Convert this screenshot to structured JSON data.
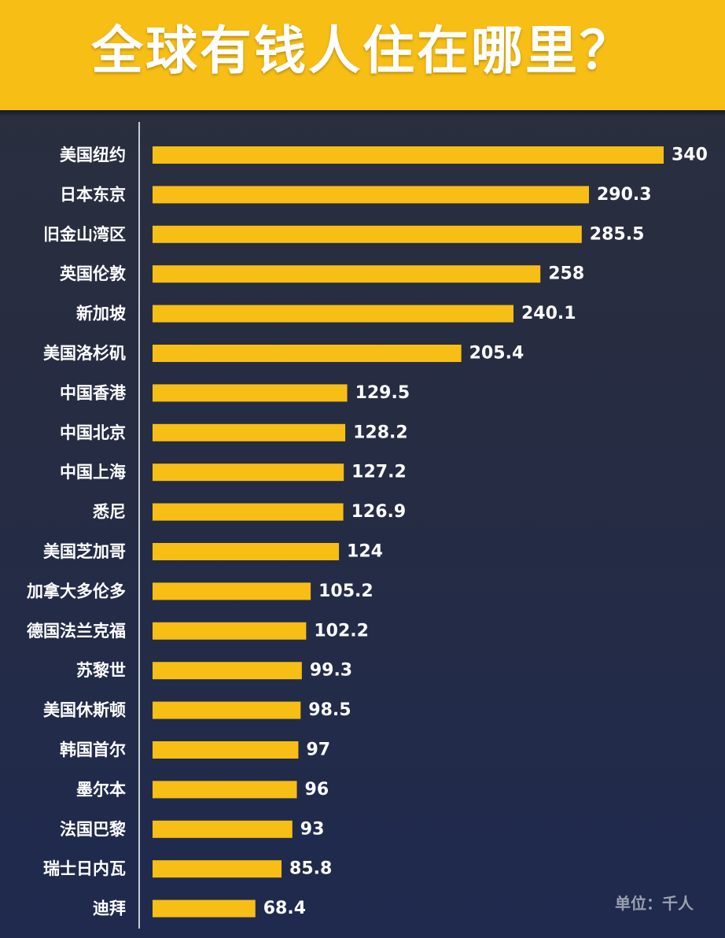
{
  "header": {
    "title": "全球有钱人住在哪里？"
  },
  "footer": {
    "unit": "单位：千人"
  },
  "chart_data": {
    "type": "bar",
    "orientation": "horizontal",
    "title": "全球有钱人住在哪里？",
    "unit": "千人",
    "categories": [
      "美国纽约",
      "日本东京",
      "旧金山湾区",
      "英国伦敦",
      "新加坡",
      "美国洛杉矶",
      "中国香港",
      "中国北京",
      "中国上海",
      "悉尼",
      "美国芝加哥",
      "加拿大多伦多",
      "德国法兰克福",
      "苏黎世",
      "美国休斯顿",
      "韩国首尔",
      "墨尔本",
      "法国巴黎",
      "瑞士日内瓦",
      "迪拜"
    ],
    "values": [
      340,
      290.3,
      285.5,
      258,
      240.1,
      205.4,
      129.5,
      128.2,
      127.2,
      126.9,
      124,
      105.2,
      102.2,
      99.3,
      98.5,
      97,
      96,
      93,
      85.8,
      68.4
    ],
    "value_labels": [
      "340",
      "290.3",
      "285.5",
      "258",
      "240.1",
      "205.4",
      "129.5",
      "128.2",
      "127.2",
      "126.9",
      "124",
      "105.2",
      "102.2",
      "99.3",
      "98.5",
      "97",
      "96",
      "93",
      "85.8",
      "68.4"
    ],
    "xlim": [
      0,
      340
    ],
    "grid": false,
    "bar_color": "#f7be15",
    "label_color": "#ffffff"
  }
}
